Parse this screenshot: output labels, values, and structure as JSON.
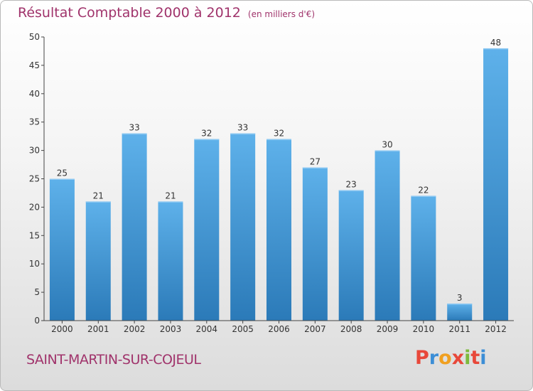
{
  "header": {
    "title": "Résultat Comptable 2000 à 2012",
    "subtitle": "(en milliers d'€)"
  },
  "footer": {
    "place": "SAINT-MARTIN-SUR-COJEUL",
    "logo": "Proxiti"
  },
  "colors": {
    "title": "#a0336b",
    "bar_top": "#5eb1ea",
    "bar_bottom": "#2b7ab8",
    "logo": [
      "#e8483a",
      "#3c8ed6",
      "#f0a020",
      "#e8483a",
      "#7cba3c",
      "#e8483a",
      "#3c8ed6"
    ]
  },
  "chart_data": {
    "type": "bar",
    "title": "Résultat Comptable 2000 à 2012",
    "subtitle": "(en milliers d'€)",
    "categories": [
      "2000",
      "2001",
      "2002",
      "2003",
      "2004",
      "2005",
      "2006",
      "2007",
      "2008",
      "2009",
      "2010",
      "2011",
      "2012"
    ],
    "values": [
      25,
      21,
      33,
      21,
      32,
      33,
      32,
      27,
      23,
      30,
      22,
      3,
      48
    ],
    "ylim": [
      0,
      50
    ],
    "yticks": [
      0,
      5,
      10,
      15,
      20,
      25,
      30,
      35,
      40,
      45,
      50
    ],
    "grid": false,
    "legend": "none"
  }
}
